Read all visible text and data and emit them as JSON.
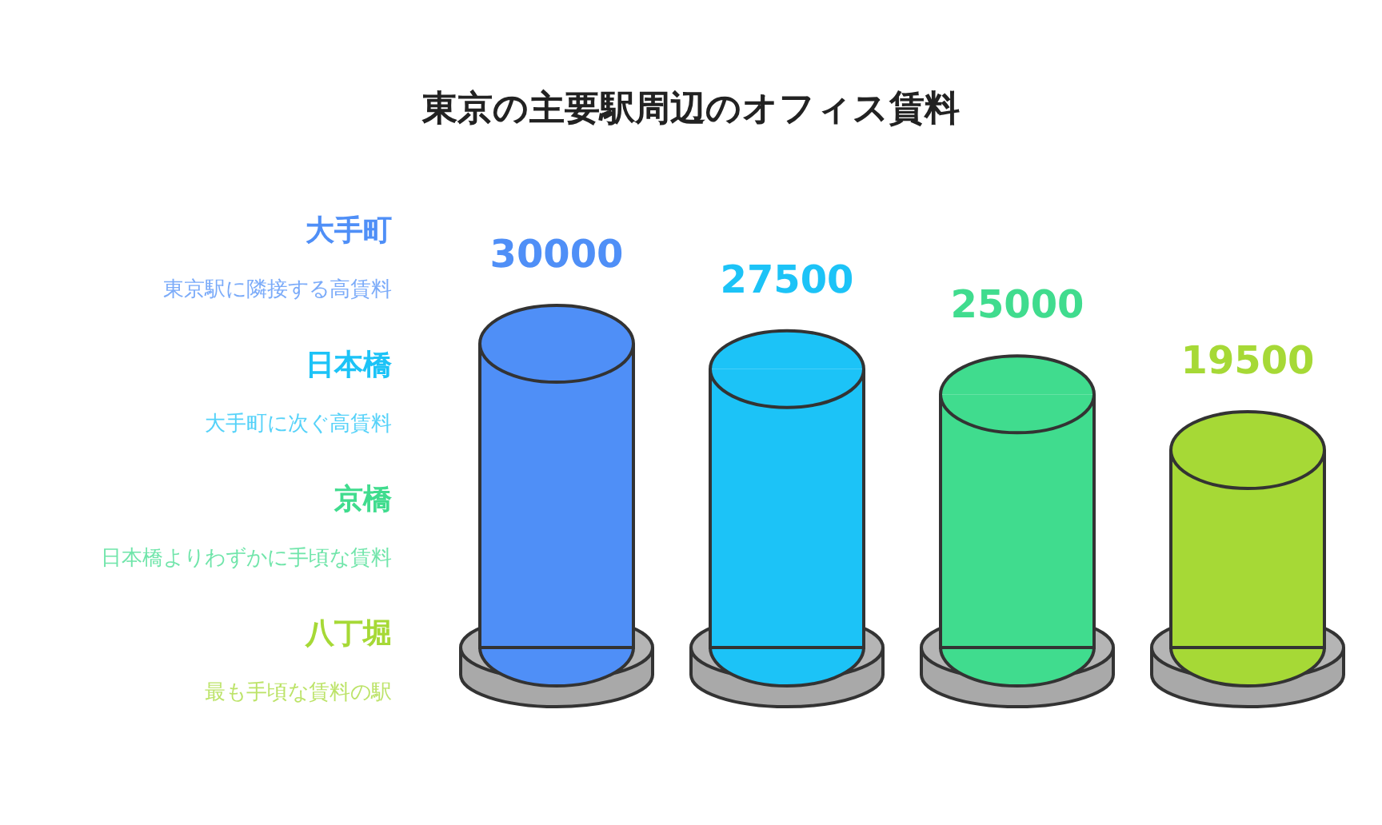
{
  "chart_data": {
    "type": "bar",
    "title": "東京の主要駅周辺のオフィス賃料",
    "categories": [
      null,
      null,
      null,
      null
    ],
    "values": [
      30000,
      27500,
      25000,
      19500
    ],
    "colors": [
      "#4f8ff7",
      "#1cc3f7",
      "#40dc8e",
      "#a6d936"
    ],
    "annotations": [
      "大手町",
      "東京駅に隣接する高賃料",
      "日本橋",
      "大手町に次ぐ高賃料",
      "京橋",
      "日本橋よりわずかに手頃な賃料",
      "八丁堀",
      "最も手頃な賃料の駅"
    ],
    "data_labels": true
  }
}
